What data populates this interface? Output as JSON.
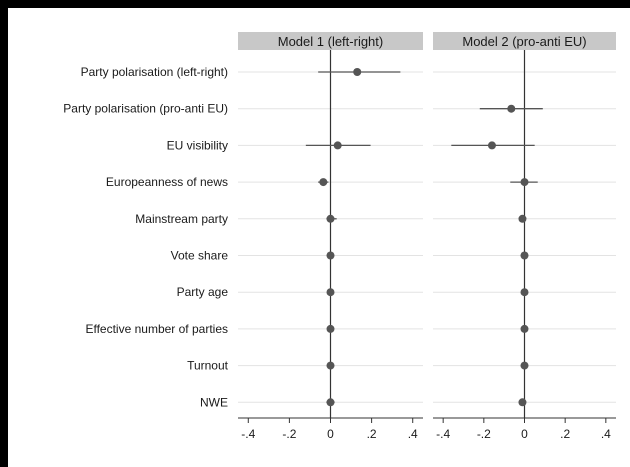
{
  "chart_data": {
    "type": "scatter",
    "subtype": "coefficient-plot",
    "variables": [
      "Party polarisation (left-right)",
      "Party polarisation (pro-anti EU)",
      "EU visibility",
      "Europeanness of news",
      "Mainstream party",
      "Vote share",
      "Party age",
      "Effective number of parties",
      "Turnout",
      "NWE"
    ],
    "xlim": [
      -0.45,
      0.45
    ],
    "xticks": [
      -0.4,
      -0.2,
      0,
      0.2,
      0.4
    ],
    "xtick_labels": [
      "-.4",
      "-.2",
      "0",
      ".2",
      ".4"
    ],
    "reference_line": 0,
    "grid": "horizontal",
    "panels": [
      {
        "title": "Model 1 (left-right)",
        "estimates": [
          0.13,
          null,
          0.035,
          -0.035,
          0.0,
          0.0,
          0.0,
          0.0,
          0.0,
          0.0
        ],
        "ci_low": [
          -0.06,
          null,
          -0.12,
          -0.06,
          -0.02,
          -0.005,
          -0.005,
          -0.005,
          -0.005,
          -0.02
        ],
        "ci_high": [
          0.34,
          null,
          0.195,
          -0.01,
          0.03,
          0.005,
          0.005,
          0.005,
          0.005,
          0.02
        ]
      },
      {
        "title": "Model 2 (pro-anti EU)",
        "estimates": [
          null,
          -0.065,
          -0.16,
          0.0,
          -0.01,
          0.0,
          0.0,
          0.0,
          0.0,
          -0.01
        ],
        "ci_low": [
          null,
          -0.22,
          -0.36,
          -0.07,
          -0.02,
          -0.005,
          -0.005,
          -0.005,
          -0.005,
          -0.02
        ],
        "ci_high": [
          null,
          0.09,
          0.05,
          0.065,
          0.005,
          0.005,
          0.005,
          0.005,
          0.005,
          0.005
        ]
      }
    ]
  },
  "colors": {
    "header_fill": "#c8c8c8",
    "marker": "#555555",
    "ci_line": "#555555",
    "reference_line": "#333333",
    "grid": "#e3e3e3",
    "axis": "#333333"
  }
}
